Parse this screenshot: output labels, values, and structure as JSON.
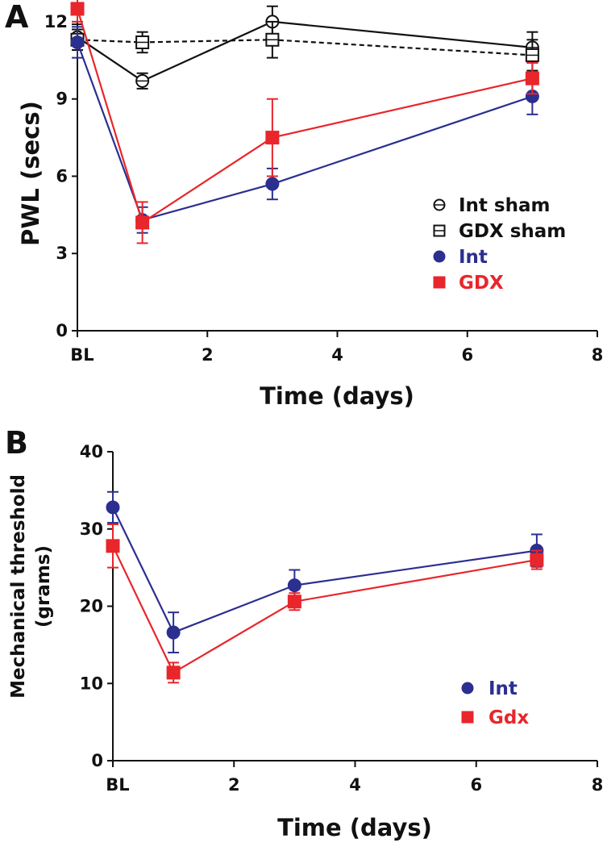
{
  "chart_data": [
    {
      "panel": "A",
      "type": "line",
      "xlabel": "Time (days)",
      "ylabel": "PWL (secs)",
      "xlim": [
        0,
        8
      ],
      "ylim": [
        0,
        13
      ],
      "x_ticks": [
        {
          "value": 0,
          "label": "BL"
        },
        {
          "value": 2,
          "label": "2"
        },
        {
          "value": 4,
          "label": "4"
        },
        {
          "value": 6,
          "label": "6"
        },
        {
          "value": 8,
          "label": "8"
        }
      ],
      "y_ticks": [
        {
          "value": 0,
          "label": "0"
        },
        {
          "value": 3,
          "label": "3"
        },
        {
          "value": 6,
          "label": "6"
        },
        {
          "value": 9,
          "label": "9"
        },
        {
          "value": 12,
          "label": "12"
        }
      ],
      "legend_position": "right-middle",
      "series": [
        {
          "name": "Int sham",
          "color": "#111111",
          "marker": "circle-open",
          "line": "solid",
          "x": [
            0,
            1,
            3,
            7
          ],
          "y": [
            11.4,
            9.7,
            12.0,
            11.0
          ],
          "err": [
            0.5,
            0.3,
            0.6,
            0.6
          ]
        },
        {
          "name": "GDX sham",
          "color": "#111111",
          "marker": "square-open",
          "line": "dashed",
          "x": [
            0,
            1,
            3,
            7
          ],
          "y": [
            11.3,
            11.2,
            11.3,
            10.7
          ],
          "err": [
            0.4,
            0.4,
            0.7,
            0.6
          ]
        },
        {
          "name": "Int",
          "color": "#2b2f8f",
          "marker": "circle-filled",
          "line": "solid",
          "x": [
            0,
            1,
            3,
            7
          ],
          "y": [
            11.2,
            4.3,
            5.7,
            9.1
          ],
          "err": [
            0.6,
            0.5,
            0.6,
            0.7
          ]
        },
        {
          "name": "GDX",
          "color": "#e8262b",
          "marker": "square-filled",
          "line": "solid",
          "x": [
            0,
            1,
            3,
            7
          ],
          "y": [
            12.5,
            4.2,
            7.5,
            9.8
          ],
          "err": [
            0.5,
            0.8,
            1.5,
            0.6
          ]
        }
      ]
    },
    {
      "panel": "B",
      "type": "line",
      "xlabel": "Time (days)",
      "ylabel": [
        "Mechanical threshold",
        "(grams)"
      ],
      "xlim": [
        0,
        8
      ],
      "ylim": [
        0,
        40
      ],
      "x_ticks": [
        {
          "value": 0,
          "label": "BL"
        },
        {
          "value": 2,
          "label": "2"
        },
        {
          "value": 4,
          "label": "4"
        },
        {
          "value": 6,
          "label": "6"
        },
        {
          "value": 8,
          "label": "8"
        }
      ],
      "y_ticks": [
        {
          "value": 0,
          "label": "0"
        },
        {
          "value": 10,
          "label": "10"
        },
        {
          "value": 20,
          "label": "20"
        },
        {
          "value": 30,
          "label": "30"
        },
        {
          "value": 40,
          "label": "40"
        }
      ],
      "legend_position": "bottom-right",
      "series": [
        {
          "name": "Int",
          "color": "#2b2f8f",
          "marker": "circle-filled",
          "line": "solid",
          "x": [
            0,
            1,
            3,
            7
          ],
          "y": [
            32.8,
            16.6,
            22.7,
            27.2
          ],
          "err": [
            2.0,
            2.6,
            2.0,
            2.1
          ]
        },
        {
          "name": "Gdx",
          "color": "#e8262b",
          "marker": "square-filled",
          "line": "solid",
          "x": [
            0,
            1,
            3,
            7
          ],
          "y": [
            27.8,
            11.4,
            20.6,
            26.0
          ],
          "err": [
            2.8,
            1.3,
            1.1,
            1.2
          ]
        }
      ]
    }
  ]
}
